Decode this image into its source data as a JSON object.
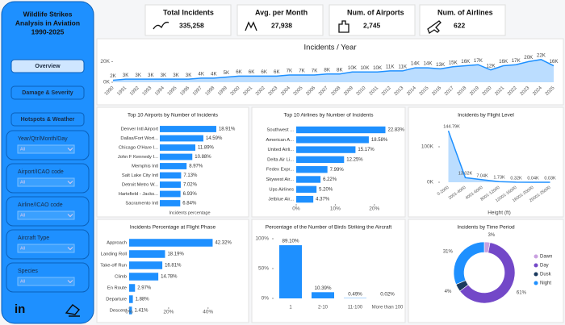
{
  "sidebar": {
    "title_lines": [
      "Wildlife Strikes",
      "Analysis in Aviation",
      "1990-2025"
    ],
    "nav": [
      "Overview",
      "Damage & Severity",
      "Hotspots & Weather"
    ],
    "filters": [
      {
        "label": "Year/Qtr/Month/Day",
        "value": "All"
      },
      {
        "label": "Airport/ICAO code",
        "value": "All"
      },
      {
        "label": "Airline/ICAO code",
        "value": "All"
      },
      {
        "label": "Aircraft Type",
        "value": "All"
      },
      {
        "label": "Species",
        "value": "All"
      }
    ],
    "logo": "in"
  },
  "kpis": [
    {
      "label": "Total Incidents",
      "value": "335,258"
    },
    {
      "label": "Avg. per Month",
      "value": "27,938"
    },
    {
      "label": "Num. of Airports",
      "value": "2,745"
    },
    {
      "label": "Num. of Airlines",
      "value": "622"
    }
  ],
  "chart_data": [
    {
      "type": "area",
      "title": "Incidents / Year",
      "x": [
        1990,
        1991,
        1992,
        1993,
        1994,
        1995,
        1996,
        1997,
        1998,
        1999,
        2000,
        2001,
        2002,
        2003,
        2004,
        2005,
        2006,
        2007,
        2008,
        2009,
        2010,
        2011,
        2012,
        2013,
        2014,
        2015,
        2016,
        2017,
        2018,
        2019,
        2020,
        2021,
        2022,
        2023,
        2024,
        2025
      ],
      "xlim": [
        1990,
        2025
      ],
      "values": [
        2000,
        3000,
        3000,
        3000,
        3000,
        3000,
        3000,
        4000,
        4000,
        5000,
        6000,
        6000,
        6000,
        6000,
        7000,
        7000,
        7000,
        8000,
        8000,
        10000,
        10000,
        10000,
        11000,
        11000,
        14000,
        14000,
        13000,
        15000,
        16000,
        17000,
        12000,
        16000,
        17000,
        20000,
        22000,
        16000
      ],
      "value_labels": [
        "2K",
        "3K",
        "3K",
        "3K",
        "3K",
        "3K",
        "3K",
        "4K",
        "4K",
        "5K",
        "6K",
        "6K",
        "6K",
        "6K",
        "7K",
        "7K",
        "7K",
        "8K",
        "8K",
        "10K",
        "10K",
        "10K",
        "11K",
        "11K",
        "14K",
        "14K",
        "13K",
        "15K",
        "16K",
        "17K",
        "12K",
        "16K",
        "17K",
        "20K",
        "22K",
        "16K"
      ],
      "color": "#1e90ff",
      "ylim": [
        0,
        25000
      ],
      "yticks": [
        {
          "value": 0,
          "label": "0K"
        },
        {
          "value": 20000,
          "label": "20K"
        }
      ]
    },
    {
      "type": "hbar",
      "title": "Top 10 Airports by Number of Incidents",
      "categories": [
        "Denver Intl Airport",
        "Dallas/Fort Wort...",
        "Chicago O'Hare I...",
        "John F Kennedy I...",
        "Memphis Intl",
        "Salt Lake City Intl",
        "Detroit Metro W...",
        "Hartsfield - Jacks...",
        "Sacramento Intl"
      ],
      "values": [
        18.91,
        14.59,
        11.89,
        10.88,
        8.97,
        7.13,
        7.02,
        6.93,
        6.84
      ],
      "value_labels": [
        "18.91%",
        "14.59%",
        "11.89%",
        "10.88%",
        "8.97%",
        "7.13%",
        "7.02%",
        "6.93%",
        "6.84%"
      ],
      "color": "#1e90ff",
      "xlim": [
        0,
        20
      ],
      "x_label": "Incidents percentage"
    },
    {
      "type": "hbar",
      "title": "Top 10 Airlines by Number of Incidents",
      "categories": [
        "Southwest ...",
        "American A...",
        "United Airli...",
        "Delta Air Li...",
        "Fedex Expr...",
        "Skywest Air...",
        "Ups Airlines",
        "Jetblue Air..."
      ],
      "values": [
        22.83,
        18.58,
        15.17,
        12.25,
        7.99,
        6.22,
        5.2,
        4.37
      ],
      "value_labels": [
        "22.83%",
        "18.58%",
        "15.17%",
        "12.25%",
        "7.99%",
        "6.22%",
        "5.20%",
        "4.37%"
      ],
      "color": "#1e90ff",
      "xlim": [
        0,
        25
      ],
      "xticks": [
        {
          "value": 0,
          "label": "0%"
        },
        {
          "value": 10,
          "label": "10%"
        },
        {
          "value": 20,
          "label": "20%"
        }
      ]
    },
    {
      "type": "area",
      "title": "Incidents by Flight Level",
      "categories": [
        "0-2000",
        "2001-4000",
        "4001-6000",
        "8001-12000",
        "12001-16000",
        "16001-20000",
        "20001-25000"
      ],
      "values": [
        144790,
        13020,
        7040,
        1730,
        320,
        40,
        30
      ],
      "value_labels": [
        "144.79K",
        "13.02K",
        "7.04K",
        "1.73K",
        "0.32K",
        "0.04K",
        "0.03K"
      ],
      "color": "#1e90ff",
      "ylim": [
        0,
        150000
      ],
      "yticks": [
        {
          "value": 0,
          "label": "0K"
        },
        {
          "value": 100000,
          "label": "100K"
        }
      ],
      "x_label": "Height (ft)"
    },
    {
      "type": "hbar",
      "title": "Incidents Percentage at Flight Phase",
      "categories": [
        "Approach",
        "Landing Roll",
        "Take-off Run",
        "Climb",
        "En Route",
        "Departure",
        "Descent"
      ],
      "values": [
        42.32,
        18.19,
        16.81,
        14.78,
        2.97,
        1.88,
        1.41
      ],
      "value_labels": [
        "42.32%",
        "18.19%",
        "16.81%",
        "14.78%",
        "2.97%",
        "1.88%",
        "1.41%"
      ],
      "color": "#1e90ff",
      "xlim": [
        0,
        45
      ],
      "xticks": [
        {
          "value": 0,
          "label": "0%"
        },
        {
          "value": 20,
          "label": "20%"
        },
        {
          "value": 40,
          "label": "40%"
        }
      ]
    },
    {
      "type": "bar",
      "title": "Percentage of the Number of Birds Striking the Aircraft",
      "categories": [
        "1",
        "2-10",
        "11-100",
        "More than 100"
      ],
      "values": [
        89.1,
        10.39,
        0.49,
        0.02
      ],
      "value_labels": [
        "89.10%",
        "10.39%",
        "0.49%",
        "0.02%"
      ],
      "color": "#1e90ff",
      "ylim": [
        0,
        100
      ],
      "yticks": [
        {
          "value": 0,
          "label": "0%"
        },
        {
          "value": 50,
          "label": "50%"
        },
        {
          "value": 100,
          "label": "100%"
        }
      ]
    },
    {
      "type": "donut",
      "title": "Incidents by Time Period",
      "categories": [
        "Dawn",
        "Day",
        "Dusk",
        "Night"
      ],
      "values": [
        3,
        61,
        4,
        31
      ],
      "value_labels": [
        "3%",
        "61%",
        "4%",
        "31%"
      ],
      "colors": [
        "#c9a0e0",
        "#7348c8",
        "#1a3a5e",
        "#1e90ff"
      ]
    }
  ]
}
